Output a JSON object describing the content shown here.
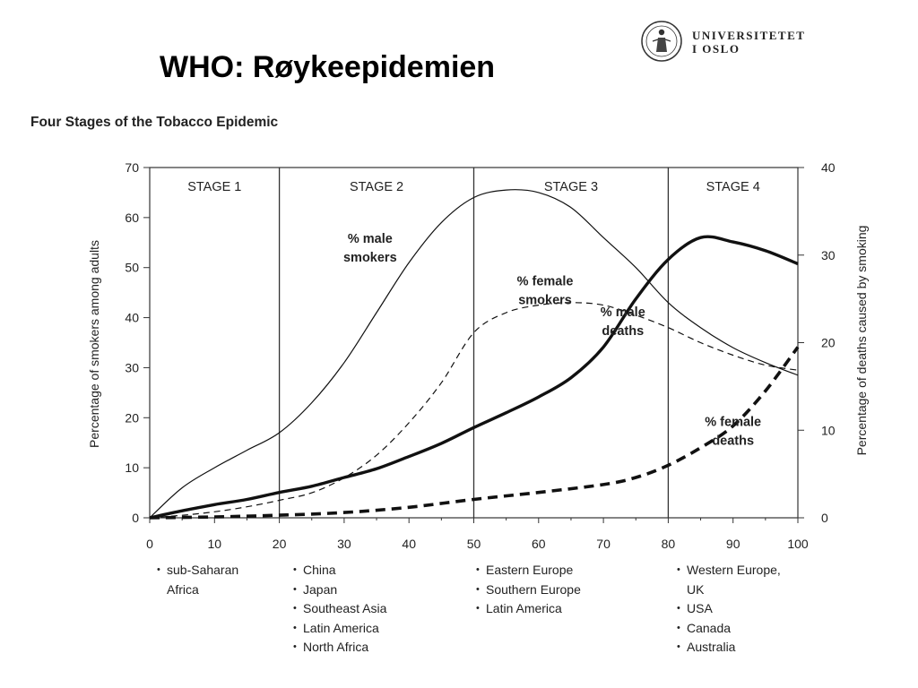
{
  "slide": {
    "title": "WHO: Røykeepidemien"
  },
  "logo": {
    "icon": "university-seal-icon",
    "lines": [
      "UNIVERSITETET",
      "I OSLO"
    ]
  },
  "chart_data": {
    "type": "line",
    "title": "Four Stages of the Tobacco Epidemic",
    "xlim": [
      0,
      100
    ],
    "x_ticks": [
      "0",
      "10",
      "20",
      "30",
      "40",
      "50",
      "60",
      "70",
      "80",
      "90",
      "100"
    ],
    "ylabel": "Percentage of smokers among adults",
    "ylim": [
      0,
      70
    ],
    "y_ticks": [
      "0",
      "10",
      "20",
      "30",
      "40",
      "50",
      "60",
      "70"
    ],
    "y2label": "Percentage of deaths caused by smoking",
    "y2lim": [
      0,
      40
    ],
    "y2_ticks": [
      "0",
      "10",
      "20",
      "30",
      "40"
    ],
    "grid": false,
    "stages": [
      {
        "label": "STAGE 1",
        "start": 0,
        "end": 20,
        "regions": [
          "sub-Saharan\nAfrica"
        ]
      },
      {
        "label": "STAGE 2",
        "start": 20,
        "end": 50,
        "regions": [
          "China",
          "Japan",
          "Southeast Asia",
          "Latin America",
          "North Africa"
        ]
      },
      {
        "label": "STAGE 3",
        "start": 50,
        "end": 80,
        "regions": [
          "Eastern Europe",
          "Southern Europe",
          "Latin America"
        ]
      },
      {
        "label": "STAGE 4",
        "start": 80,
        "end": 100,
        "regions": [
          "Western Europe,\nUK",
          "USA",
          "Canada",
          "Australia"
        ]
      }
    ],
    "series": [
      {
        "name": "% male\nsmokers",
        "axis": "left",
        "style": "thin-solid",
        "label_pos": [
          34,
          55
        ],
        "x": [
          0,
          5,
          10,
          15,
          20,
          25,
          30,
          35,
          40,
          45,
          50,
          55,
          60,
          65,
          70,
          75,
          80,
          85,
          90,
          95,
          100
        ],
        "y": [
          0,
          6,
          10,
          13.5,
          17,
          23,
          31,
          41,
          51,
          59,
          64,
          65.5,
          65,
          62,
          56,
          50,
          43,
          38,
          34,
          31,
          28.5
        ]
      },
      {
        "name": "% female\nsmokers",
        "axis": "left",
        "style": "thin-dashed",
        "label_pos": [
          61,
          46.5
        ],
        "x": [
          0,
          5,
          10,
          15,
          20,
          25,
          30,
          35,
          40,
          45,
          50,
          55,
          60,
          65,
          70,
          75,
          80,
          85,
          90,
          95,
          100
        ],
        "y": [
          0,
          0.5,
          1.2,
          2.2,
          3.5,
          5,
          8,
          12.5,
          19,
          27,
          37,
          41,
          42.5,
          43,
          42.5,
          40.5,
          38,
          35,
          32.5,
          30.5,
          29.5
        ]
      },
      {
        "name": "% male\ndeaths",
        "axis": "right",
        "style": "thick-solid",
        "label_pos": [
          73,
          23
        ],
        "x": [
          0,
          5,
          10,
          15,
          20,
          25,
          30,
          35,
          40,
          45,
          50,
          55,
          60,
          65,
          70,
          75,
          80,
          85,
          90,
          95,
          100
        ],
        "y": [
          0,
          0.8,
          1.5,
          2.1,
          2.9,
          3.6,
          4.6,
          5.6,
          7,
          8.5,
          10.3,
          12,
          13.8,
          16,
          19.5,
          25,
          29.5,
          32,
          31.5,
          30.5,
          29
        ]
      },
      {
        "name": "% female\ndeaths",
        "axis": "right",
        "style": "thick-dashed",
        "label_pos": [
          90,
          10.5
        ],
        "x": [
          0,
          10,
          20,
          30,
          40,
          50,
          60,
          70,
          75,
          80,
          85,
          90,
          95,
          100
        ],
        "y": [
          0,
          0.1,
          0.3,
          0.6,
          1.2,
          2.1,
          2.9,
          3.8,
          4.6,
          6,
          8,
          10.5,
          14.5,
          19.5
        ]
      }
    ]
  }
}
